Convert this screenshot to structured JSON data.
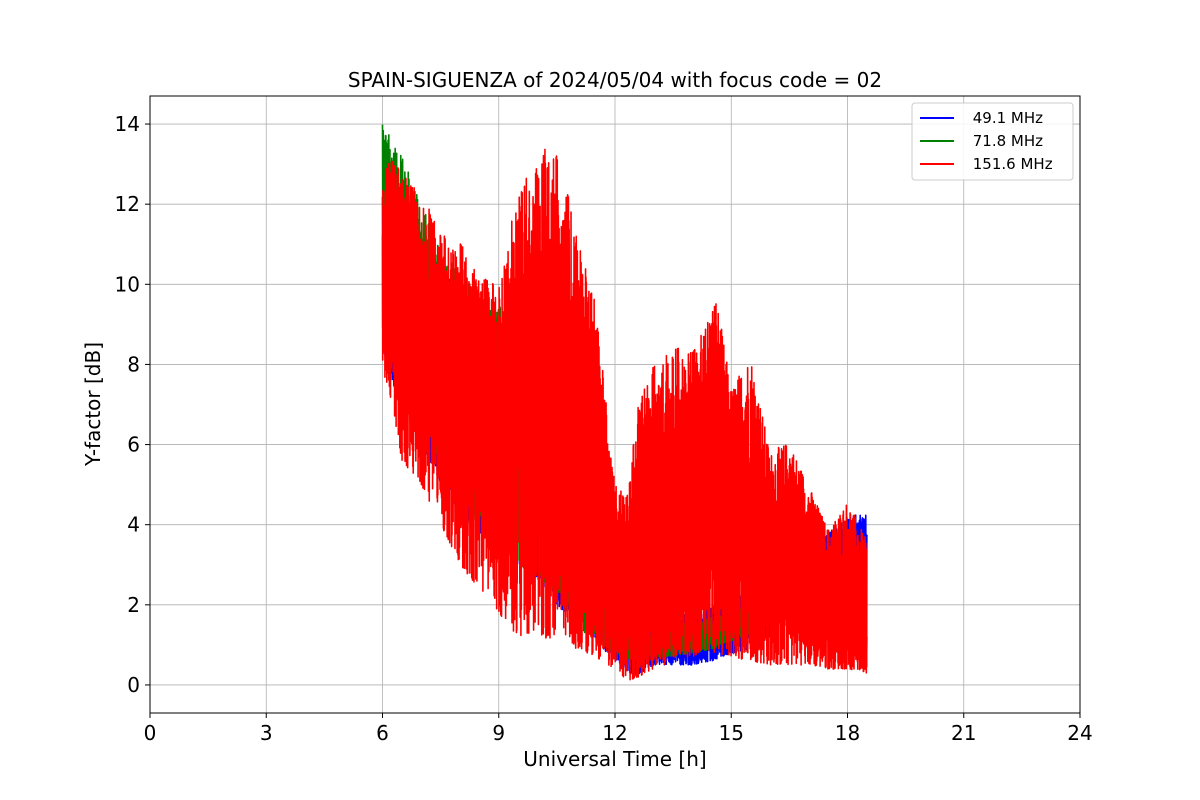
{
  "chart_data": {
    "type": "line",
    "title": "SPAIN-SIGUENZA of 2024/05/04 with focus code = 02",
    "xlabel": "Universal Time [h]",
    "ylabel": "Y-factor [dB]",
    "xlim": [
      0,
      24
    ],
    "ylim": [
      -0.7,
      14.7
    ],
    "xticks": [
      0,
      3,
      6,
      9,
      12,
      15,
      18,
      21,
      24
    ],
    "yticks": [
      0,
      2,
      4,
      6,
      8,
      10,
      12,
      14
    ],
    "x_tick_labels": [
      "0",
      "3",
      "6",
      "9",
      "12",
      "15",
      "18",
      "21",
      "24"
    ],
    "y_tick_labels": [
      "0",
      "2",
      "4",
      "6",
      "8",
      "10",
      "12",
      "14"
    ],
    "grid": true,
    "legend_position": "top-right",
    "series": [
      {
        "name": " 49.1 MHz",
        "color": "#0000ff",
        "envelope": {
          "x": [
            6.0,
            6.5,
            7.0,
            7.5,
            8.0,
            8.5,
            9.0,
            9.5,
            10.0,
            10.5,
            11.0,
            11.5,
            12.0,
            12.5,
            13.0,
            13.5,
            14.0,
            14.5,
            15.0,
            15.5,
            16.0,
            16.5,
            17.0,
            17.5,
            18.0,
            18.5
          ],
          "low": [
            8.3,
            6.8,
            6.0,
            5.0,
            4.3,
            3.8,
            3.4,
            3.0,
            2.6,
            2.0,
            1.5,
            1.1,
            0.6,
            0.2,
            0.5,
            0.5,
            0.5,
            0.6,
            0.8,
            0.9,
            1.2,
            1.5,
            1.7,
            2.0,
            2.5,
            2.7
          ],
          "high": [
            12.5,
            12.0,
            11.0,
            10.5,
            10.0,
            9.5,
            8.8,
            8.2,
            7.6,
            7.0,
            6.3,
            5.2,
            2.6,
            1.4,
            1.6,
            1.7,
            1.8,
            2.0,
            2.1,
            2.4,
            2.7,
            3.0,
            3.4,
            3.8,
            4.2,
            4.3
          ]
        }
      },
      {
        "name": " 71.8 MHz",
        "color": "#008000",
        "envelope": {
          "x": [
            6.0,
            6.5,
            7.0,
            7.5,
            8.0,
            8.5,
            9.0,
            9.5,
            10.0,
            10.5,
            11.0,
            11.5,
            12.0,
            12.5,
            13.0,
            13.5,
            14.0,
            14.5,
            15.0,
            15.5,
            16.0,
            16.5,
            17.0,
            17.5,
            18.0,
            18.5
          ],
          "low": [
            11.8,
            8.0,
            6.8,
            5.5,
            4.6,
            4.0,
            3.5,
            3.0,
            2.8,
            2.2,
            1.4,
            1.1,
            0.8,
            0.6,
            0.7,
            0.7,
            0.8,
            0.9,
            1.1,
            1.3,
            1.5,
            1.6,
            1.6,
            1.3,
            0.8,
            0.6
          ],
          "high": [
            14.0,
            13.2,
            12.0,
            11.0,
            10.2,
            9.8,
            9.5,
            9.0,
            8.5,
            6.5,
            3.5,
            2.5,
            1.5,
            1.3,
            1.4,
            1.5,
            1.6,
            1.7,
            1.8,
            2.0,
            2.2,
            2.4,
            2.6,
            2.8,
            2.3,
            1.5
          ]
        }
      },
      {
        "name": " 151.6 MHz",
        "color": "#ff0000",
        "envelope": {
          "x": [
            6.0,
            6.2,
            6.5,
            7.0,
            7.5,
            8.0,
            8.5,
            9.0,
            9.5,
            10.0,
            10.3,
            10.6,
            11.0,
            11.5,
            12.0,
            12.3,
            12.6,
            13.0,
            13.5,
            14.0,
            14.3,
            14.6,
            15.0,
            15.5,
            16.0,
            16.5,
            17.0,
            17.5,
            18.0,
            18.5
          ],
          "low": [
            7.8,
            7.2,
            5.6,
            5.0,
            4.0,
            3.0,
            2.4,
            1.8,
            1.2,
            1.3,
            1.1,
            1.4,
            0.9,
            0.7,
            0.4,
            0.1,
            0.2,
            0.4,
            0.6,
            0.7,
            0.9,
            0.8,
            0.7,
            0.6,
            0.5,
            0.5,
            0.5,
            0.4,
            0.4,
            0.3
          ],
          "high": [
            12.5,
            13.3,
            12.8,
            12.2,
            11.4,
            11.1,
            10.2,
            10.0,
            12.4,
            13.0,
            13.6,
            13.2,
            11.2,
            9.6,
            5.0,
            4.8,
            7.0,
            8.0,
            8.5,
            8.3,
            9.0,
            9.8,
            7.4,
            8.3,
            5.8,
            6.1,
            5.0,
            3.9,
            4.6,
            3.6
          ]
        }
      }
    ]
  },
  "legend": {
    "items": [
      {
        "label": " 49.1 MHz",
        "color": "#0000ff"
      },
      {
        "label": " 71.8 MHz",
        "color": "#008000"
      },
      {
        "label": " 151.6 MHz",
        "color": "#ff0000"
      }
    ]
  }
}
